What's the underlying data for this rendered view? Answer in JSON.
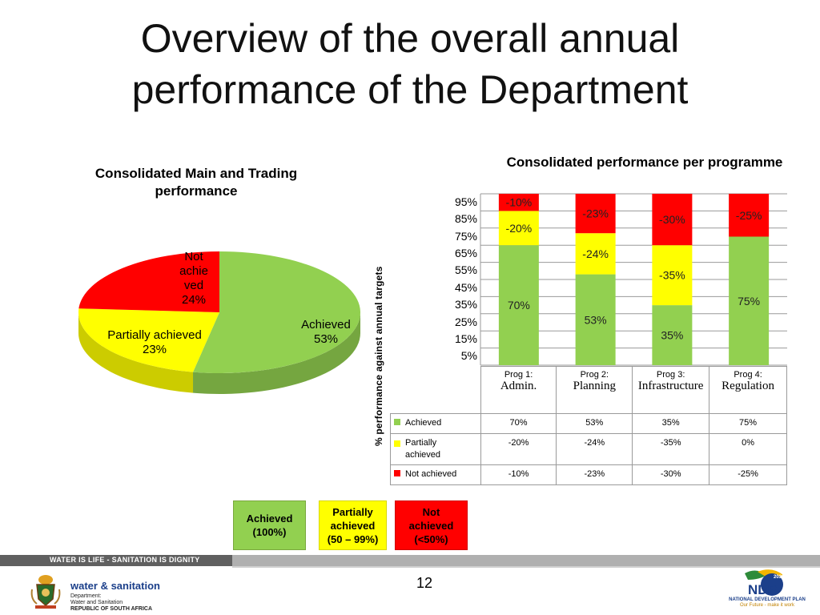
{
  "slide": {
    "title_line1": "Overview of the overall annual",
    "title_line2": "performance of the Department",
    "page_number": "12"
  },
  "chart_data": [
    {
      "type": "pie",
      "title": "Consolidated Main and Trading performance",
      "slices": [
        {
          "label": "Achieved",
          "value": 53,
          "value_label": "53%",
          "color": "#92d050"
        },
        {
          "label": "Partially achieved",
          "value": 23,
          "value_label": "23%",
          "color": "#ffff00"
        },
        {
          "label": "Not achieved",
          "value": 24,
          "value_label": "24%",
          "color": "#ff0000"
        }
      ]
    },
    {
      "type": "bar",
      "stacked": true,
      "title": "Consolidated performance per programme",
      "ylabel": "% performance against annual targets",
      "yticks": [
        "95%",
        "85%",
        "75%",
        "65%",
        "55%",
        "45%",
        "35%",
        "25%",
        "15%",
        "5%"
      ],
      "categories": [
        {
          "top": "Prog 1:",
          "bottom": "Admin."
        },
        {
          "top": "Prog 2:",
          "bottom": "Planning"
        },
        {
          "top": "Prog 3:",
          "bottom": "Infrastructure"
        },
        {
          "top": "Prog 4:",
          "bottom": "Regulation"
        }
      ],
      "series": [
        {
          "name": "Achieved",
          "color": "#92d050",
          "values": [
            70,
            53,
            35,
            75
          ],
          "labels": [
            "70%",
            "53%",
            "35%",
            "75%"
          ]
        },
        {
          "name": "Partially achieved",
          "color": "#ffff00",
          "values": [
            -20,
            -24,
            -35,
            0
          ],
          "labels": [
            "-20%",
            "-24%",
            "-35%",
            "0%"
          ]
        },
        {
          "name": "Not achieved",
          "color": "#ff0000",
          "values": [
            -10,
            -23,
            -30,
            -25
          ],
          "labels": [
            "-10%",
            "-23%",
            "-30%",
            "-25%"
          ]
        }
      ]
    }
  ],
  "key": [
    {
      "text": "Achieved (100%)",
      "color": "#92d050"
    },
    {
      "text": "Partially achieved (50 – 99%)",
      "color": "#ffff00"
    },
    {
      "text": "Not achieved (<50%)",
      "color": "#ff0000"
    }
  ],
  "footer": {
    "slogan": "WATER IS LIFE - SANITATION IS DIGNITY",
    "dept_name": "water & sanitation",
    "dept_line1": "Department:",
    "dept_line2": "Water and Sanitation",
    "dept_line3": "REPUBLIC OF SOUTH AFRICA",
    "ndp_line1": "NATIONAL DEVELOPMENT PLAN",
    "ndp_line2": "Our Future - make it work",
    "ndp_year": "2030",
    "ndp_logo_text": "NDP"
  }
}
